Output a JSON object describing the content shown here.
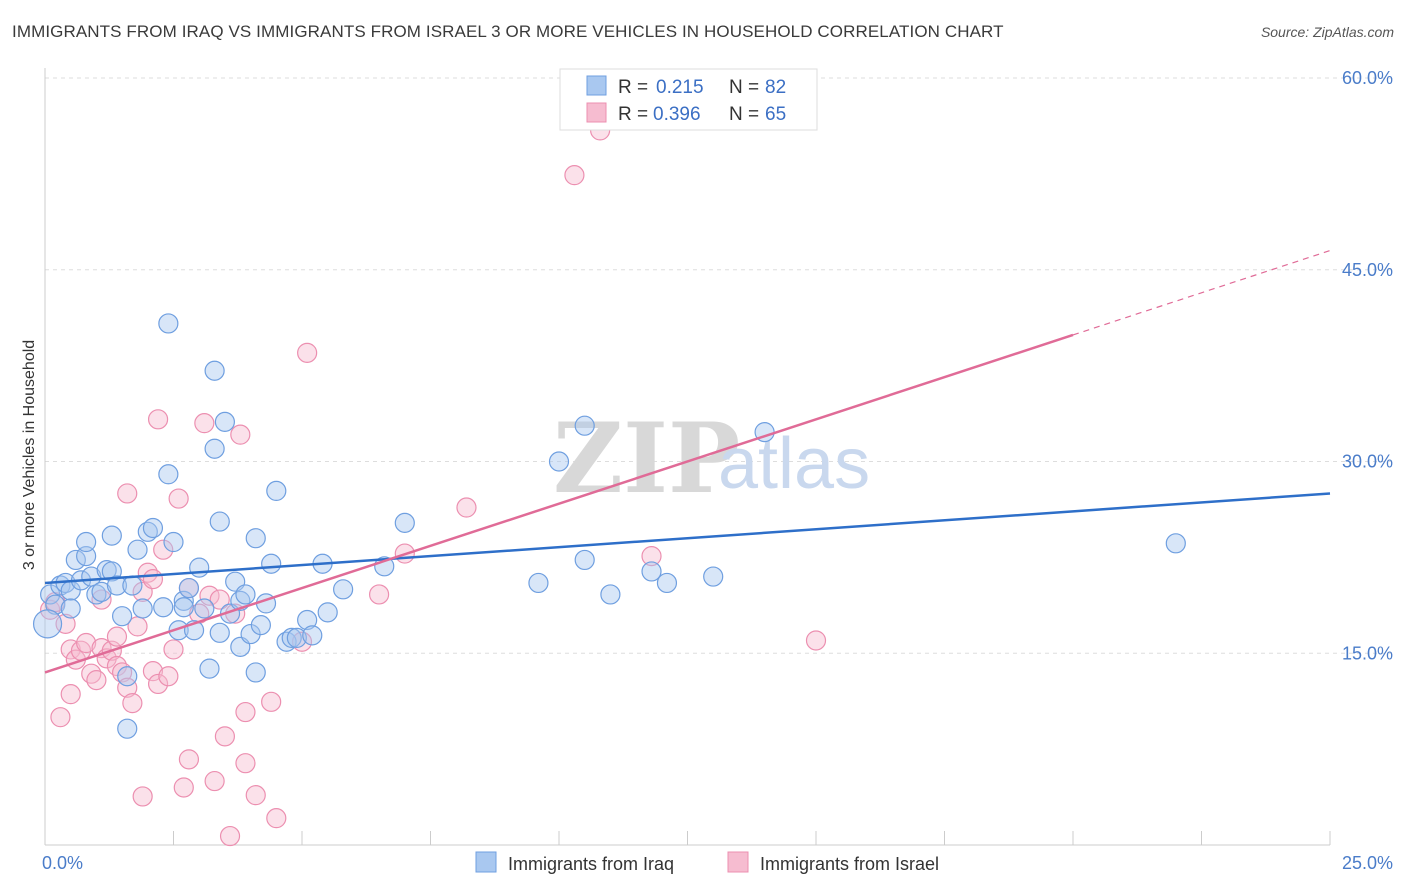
{
  "header": {
    "title": "IMMIGRANTS FROM IRAQ VS IMMIGRANTS FROM ISRAEL 3 OR MORE VEHICLES IN HOUSEHOLD CORRELATION CHART",
    "source": "Source: ZipAtlas.com"
  },
  "watermark": {
    "zip": "ZIP",
    "atlas": "atlas"
  },
  "colors": {
    "iraq_fill": "#a9c8f0",
    "iraq_stroke": "#6f9fe0",
    "iraq_line": "#2e6fc9",
    "israel_fill": "#f6bcd0",
    "israel_stroke": "#ec8fb0",
    "israel_line": "#e06b97",
    "grid": "#dddddd",
    "tick_label": "#4a7cc9"
  },
  "legend": {
    "r_label": "R =",
    "n_label": "N =",
    "rows": [
      {
        "r": "0.215",
        "n": "82"
      },
      {
        "r": "0.396",
        "n": "65"
      }
    ]
  },
  "chart_data": {
    "type": "scatter",
    "title": "IMMIGRANTS FROM IRAQ VS IMMIGRANTS FROM ISRAEL 3 OR MORE VEHICLES IN HOUSEHOLD CORRELATION CHART",
    "xlabel": "",
    "ylabel": "3 or more Vehicles in Household",
    "xlim": [
      0,
      25
    ],
    "ylim": [
      0,
      60
    ],
    "x_tick_labels": [
      "0.0%",
      "25.0%"
    ],
    "y_ticks": [
      15,
      30,
      45,
      60
    ],
    "y_tick_labels": [
      "15.0%",
      "30.0%",
      "45.0%",
      "60.0%"
    ],
    "grid": true,
    "legend_position": "top-center",
    "series": [
      {
        "name": "Immigrants from Iraq",
        "r": 0.215,
        "n": 82,
        "trend": {
          "x": [
            0,
            25
          ],
          "y": [
            20.5,
            27.5
          ]
        },
        "points": [
          [
            0.1,
            19.6
          ],
          [
            0.2,
            18.8
          ],
          [
            0.3,
            20.3
          ],
          [
            0.4,
            20.5
          ],
          [
            0.5,
            19.9
          ],
          [
            0.5,
            18.5
          ],
          [
            0.6,
            22.3
          ],
          [
            0.7,
            20.7
          ],
          [
            0.8,
            22.6
          ],
          [
            0.8,
            23.7
          ],
          [
            0.9,
            21.0
          ],
          [
            1.0,
            19.6
          ],
          [
            1.1,
            19.8
          ],
          [
            1.2,
            21.5
          ],
          [
            1.3,
            21.4
          ],
          [
            1.3,
            24.2
          ],
          [
            1.4,
            20.3
          ],
          [
            1.5,
            17.9
          ],
          [
            1.6,
            13.2
          ],
          [
            1.6,
            9.1
          ],
          [
            1.7,
            20.3
          ],
          [
            1.8,
            23.1
          ],
          [
            1.9,
            18.5
          ],
          [
            2.0,
            24.5
          ],
          [
            2.1,
            24.8
          ],
          [
            2.3,
            18.6
          ],
          [
            2.4,
            29.0
          ],
          [
            2.4,
            40.8
          ],
          [
            2.5,
            23.7
          ],
          [
            2.6,
            16.8
          ],
          [
            2.7,
            19.1
          ],
          [
            2.7,
            18.6
          ],
          [
            2.8,
            20.1
          ],
          [
            2.9,
            16.8
          ],
          [
            3.0,
            21.7
          ],
          [
            3.1,
            18.5
          ],
          [
            3.2,
            13.8
          ],
          [
            3.3,
            31.0
          ],
          [
            3.3,
            37.1
          ],
          [
            3.4,
            16.6
          ],
          [
            3.4,
            25.3
          ],
          [
            3.5,
            33.1
          ],
          [
            3.6,
            18.1
          ],
          [
            3.7,
            20.6
          ],
          [
            3.8,
            15.5
          ],
          [
            3.8,
            19.1
          ],
          [
            3.9,
            19.6
          ],
          [
            4.0,
            16.5
          ],
          [
            4.1,
            13.5
          ],
          [
            4.1,
            24.0
          ],
          [
            4.2,
            17.2
          ],
          [
            4.3,
            18.9
          ],
          [
            4.4,
            22.0
          ],
          [
            4.5,
            27.7
          ],
          [
            4.7,
            15.9
          ],
          [
            4.8,
            16.2
          ],
          [
            4.9,
            16.2
          ],
          [
            5.1,
            17.6
          ],
          [
            5.2,
            16.4
          ],
          [
            5.4,
            22.0
          ],
          [
            5.5,
            18.2
          ],
          [
            5.8,
            20.0
          ],
          [
            6.6,
            21.8
          ],
          [
            7.0,
            25.2
          ],
          [
            9.6,
            20.5
          ],
          [
            10.0,
            30.0
          ],
          [
            10.5,
            22.3
          ],
          [
            10.5,
            32.8
          ],
          [
            11.0,
            19.6
          ],
          [
            11.8,
            21.4
          ],
          [
            12.1,
            20.5
          ],
          [
            13.0,
            21.0
          ],
          [
            14.0,
            32.3
          ],
          [
            22.0,
            23.6
          ]
        ]
      },
      {
        "name": "Immigrants from Israel",
        "r": 0.396,
        "n": 65,
        "trend": {
          "x": [
            0,
            25
          ],
          "y": [
            13.5,
            46.5
          ]
        },
        "points": [
          [
            0.1,
            18.4
          ],
          [
            0.2,
            19.0
          ],
          [
            0.3,
            10.0
          ],
          [
            0.4,
            17.3
          ],
          [
            0.5,
            15.3
          ],
          [
            0.5,
            11.8
          ],
          [
            0.6,
            14.5
          ],
          [
            0.7,
            15.2
          ],
          [
            0.8,
            15.8
          ],
          [
            0.9,
            13.4
          ],
          [
            1.0,
            12.9
          ],
          [
            1.1,
            15.4
          ],
          [
            1.1,
            19.2
          ],
          [
            1.2,
            14.6
          ],
          [
            1.3,
            15.2
          ],
          [
            1.4,
            16.3
          ],
          [
            1.4,
            14.0
          ],
          [
            1.5,
            13.5
          ],
          [
            1.6,
            12.3
          ],
          [
            1.6,
            27.5
          ],
          [
            1.7,
            11.1
          ],
          [
            1.8,
            17.1
          ],
          [
            1.9,
            19.8
          ],
          [
            1.9,
            3.8
          ],
          [
            2.0,
            21.3
          ],
          [
            2.1,
            20.8
          ],
          [
            2.1,
            13.6
          ],
          [
            2.2,
            12.6
          ],
          [
            2.2,
            33.3
          ],
          [
            2.3,
            23.1
          ],
          [
            2.4,
            13.2
          ],
          [
            2.5,
            15.3
          ],
          [
            2.6,
            27.1
          ],
          [
            2.7,
            4.5
          ],
          [
            2.8,
            20.1
          ],
          [
            2.8,
            6.7
          ],
          [
            3.0,
            18.1
          ],
          [
            3.1,
            33.0
          ],
          [
            3.2,
            19.5
          ],
          [
            3.3,
            5.0
          ],
          [
            3.4,
            19.2
          ],
          [
            3.5,
            8.5
          ],
          [
            3.6,
            0.7
          ],
          [
            3.7,
            18.1
          ],
          [
            3.8,
            32.1
          ],
          [
            3.9,
            10.4
          ],
          [
            3.9,
            6.4
          ],
          [
            4.1,
            3.9
          ],
          [
            4.4,
            11.2
          ],
          [
            4.5,
            2.1
          ],
          [
            5.0,
            15.9
          ],
          [
            5.1,
            38.5
          ],
          [
            6.5,
            19.6
          ],
          [
            7.0,
            22.8
          ],
          [
            8.2,
            26.4
          ],
          [
            10.3,
            52.4
          ],
          [
            10.8,
            55.9
          ],
          [
            11.8,
            22.6
          ],
          [
            15.0,
            16.0
          ]
        ]
      }
    ]
  },
  "bottom_legend": {
    "items": [
      {
        "label": "Immigrants from Iraq"
      },
      {
        "label": "Immigrants from Israel"
      }
    ]
  }
}
